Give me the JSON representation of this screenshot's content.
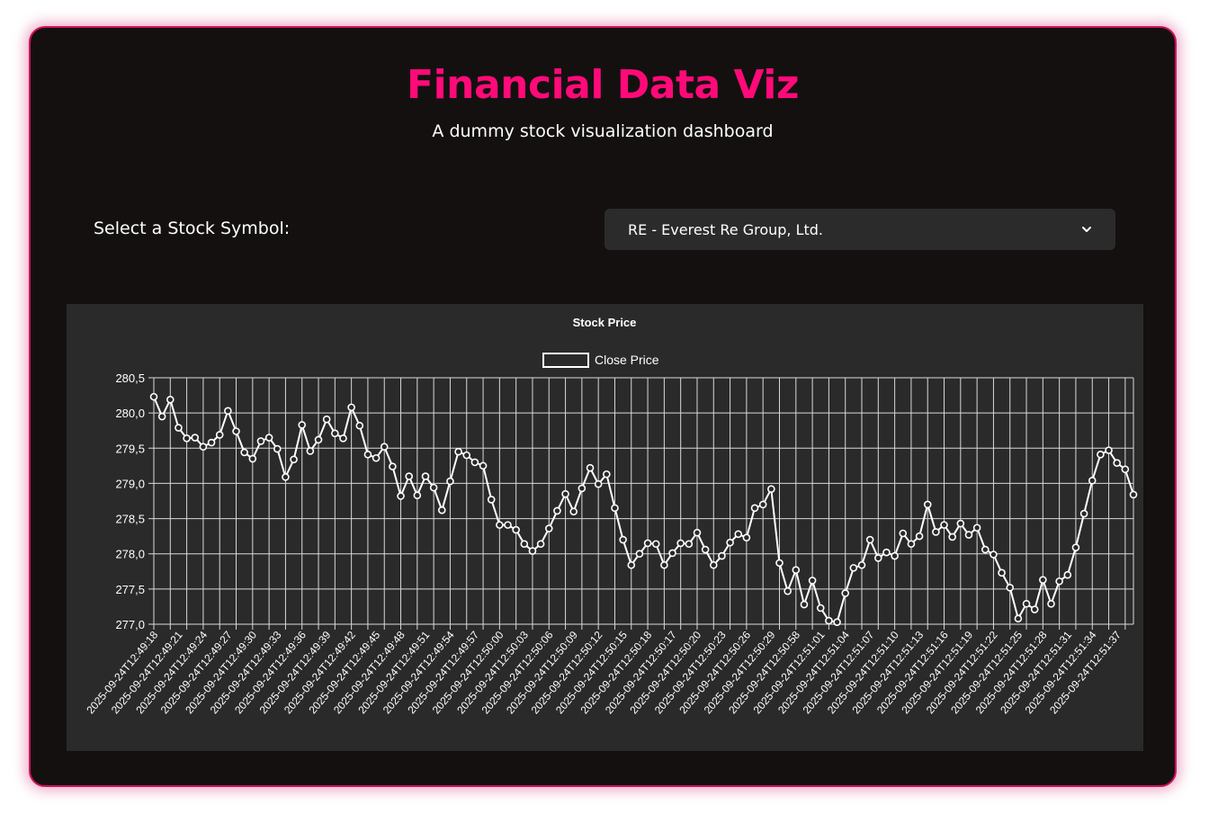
{
  "header": {
    "title": "Financial Data Viz",
    "subtitle": "A dummy stock visualization dashboard"
  },
  "controls": {
    "select_label": "Select a Stock Symbol:",
    "selected_option": "RE - Everest Re Group, Ltd."
  },
  "colors": {
    "accent": "#ff0a78",
    "card_background": "#141010",
    "panel_background": "#2a2a2a",
    "line": "#ffffff"
  },
  "icons": {
    "dropdown": "chevron-down-icon"
  },
  "chart_data": {
    "type": "line",
    "title": "Stock Price",
    "grid": true,
    "legend_placement": "top-center",
    "ylim": [
      277.0,
      280.5
    ],
    "yticks": [
      "280,5",
      "280,0",
      "279,5",
      "279,0",
      "278,5",
      "278,0",
      "277,5",
      "277,0"
    ],
    "x_tick_labels": [
      "2025-09-24T12:49:18",
      "2025-09-24T12:49:21",
      "2025-09-24T12:49:24",
      "2025-09-24T12:49:27",
      "2025-09-24T12:49:30",
      "2025-09-24T12:49:33",
      "2025-09-24T12:49:36",
      "2025-09-24T12:49:39",
      "2025-09-24T12:49:42",
      "2025-09-24T12:49:45",
      "2025-09-24T12:49:48",
      "2025-09-24T12:49:51",
      "2025-09-24T12:49:54",
      "2025-09-24T12:49:57",
      "2025-09-24T12:50:00",
      "2025-09-24T12:50:03",
      "2025-09-24T12:50:06",
      "2025-09-24T12:50:09",
      "2025-09-24T12:50:12",
      "2025-09-24T12:50:15",
      "2025-09-24T12:50:18",
      "2025-09-24T12:50:17",
      "2025-09-24T12:50:20",
      "2025-09-24T12:50:23",
      "2025-09-24T12:50:26",
      "2025-09-24T12:50:29",
      "2025-09-24T12:50:58",
      "2025-09-24T12:51:01",
      "2025-09-24T12:51:04",
      "2025-09-24T12:51:07",
      "2025-09-24T12:51:10",
      "2025-09-24T12:51:13",
      "2025-09-24T12:51:16",
      "2025-09-24T12:51:19",
      "2025-09-24T12:51:22",
      "2025-09-24T12:51:25",
      "2025-09-24T12:51:28",
      "2025-09-24T12:51:31",
      "2025-09-24T12:51:34",
      "2025-09-24T12:51:37"
    ],
    "series": [
      {
        "name": "Close Price",
        "values": [
          280.23,
          279.95,
          280.19,
          279.79,
          279.64,
          279.65,
          279.52,
          279.58,
          279.69,
          280.03,
          279.74,
          279.44,
          279.35,
          279.6,
          279.65,
          279.49,
          279.09,
          279.34,
          279.83,
          279.46,
          279.62,
          279.91,
          279.71,
          279.64,
          280.08,
          279.82,
          279.41,
          279.36,
          279.52,
          279.24,
          278.82,
          279.1,
          278.83,
          279.1,
          278.94,
          278.62,
          279.03,
          279.45,
          279.4,
          279.3,
          279.25,
          278.77,
          278.41,
          278.41,
          278.34,
          278.14,
          278.04,
          278.14,
          278.36,
          278.61,
          278.85,
          278.6,
          278.93,
          279.22,
          278.99,
          279.13,
          278.65,
          278.2,
          277.84,
          278.0,
          278.15,
          278.14,
          277.84,
          278.01,
          278.15,
          278.14,
          278.3,
          278.06,
          277.84,
          277.97,
          278.16,
          278.28,
          278.23,
          278.65,
          278.7,
          278.92,
          277.87,
          277.47,
          277.77,
          277.28,
          277.62,
          277.23,
          277.05,
          277.03,
          277.44,
          277.8,
          277.84,
          278.2,
          277.94,
          278.02,
          277.97,
          278.29,
          278.14,
          278.25,
          278.7,
          278.31,
          278.41,
          278.24,
          278.43,
          278.27,
          278.37,
          278.06,
          277.99,
          277.73,
          277.52,
          277.08,
          277.29,
          277.21,
          277.63,
          277.29,
          277.61,
          277.7,
          278.09,
          278.57,
          279.04,
          279.41,
          279.47,
          279.29,
          279.2,
          278.84
        ]
      }
    ]
  }
}
